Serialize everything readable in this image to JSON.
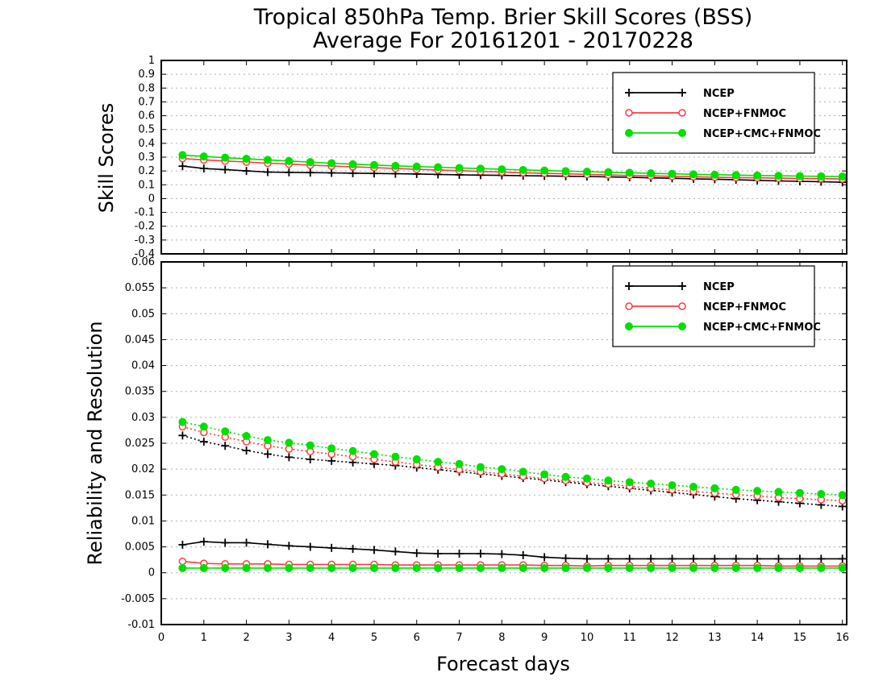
{
  "chart_data": [
    {
      "type": "line",
      "title": "Tropical 850hPa Temp. Brier Skill Scores (BSS)",
      "subtitle": "Average For 20161201 - 20170228",
      "ylabel": "Skill Scores",
      "xlabel": "",
      "ylim": [
        -0.4,
        1.0
      ],
      "yticks": [
        -0.4,
        -0.3,
        -0.2,
        -0.1,
        0,
        0.1,
        0.2,
        0.3,
        0.4,
        0.5,
        0.6,
        0.7,
        0.8,
        0.9,
        1
      ],
      "ytick_labels": [
        "-0.4",
        "-0.3",
        "-0.2",
        "-0.1",
        "0",
        "0.1",
        "0.2",
        "0.3",
        "0.4",
        "0.5",
        "0.6",
        "0.7",
        "0.8",
        "0.9",
        "1"
      ],
      "grid": true,
      "legend_position": "top-right",
      "x": [
        0.5,
        1,
        1.5,
        2,
        2.5,
        3,
        3.5,
        4,
        4.5,
        5,
        5.5,
        6,
        6.5,
        7,
        7.5,
        8,
        8.5,
        9,
        9.5,
        10,
        10.5,
        11,
        11.5,
        12,
        12.5,
        13,
        13.5,
        14,
        14.5,
        15,
        15.5,
        16
      ],
      "series": [
        {
          "name": "NCEP",
          "color": "#000000",
          "marker": "plus",
          "line": "solid",
          "values": [
            0.235,
            0.218,
            0.21,
            0.2,
            0.192,
            0.19,
            0.188,
            0.186,
            0.184,
            0.182,
            0.18,
            0.178,
            0.175,
            0.172,
            0.17,
            0.168,
            0.166,
            0.164,
            0.162,
            0.16,
            0.157,
            0.154,
            0.15,
            0.147,
            0.143,
            0.14,
            0.136,
            0.132,
            0.128,
            0.125,
            0.122,
            0.118
          ]
        },
        {
          "name": "NCEP+FNMOC",
          "color": "#ff3b3b",
          "marker": "circle-open",
          "line": "solid",
          "values": [
            0.29,
            0.28,
            0.272,
            0.265,
            0.256,
            0.25,
            0.242,
            0.236,
            0.23,
            0.224,
            0.218,
            0.212,
            0.207,
            0.202,
            0.197,
            0.192,
            0.187,
            0.183,
            0.179,
            0.175,
            0.171,
            0.167,
            0.164,
            0.161,
            0.158,
            0.155,
            0.152,
            0.15,
            0.148,
            0.146,
            0.144,
            0.142
          ]
        },
        {
          "name": "NCEP+CMC+FNMOC",
          "color": "#00e000",
          "marker": "circle-filled",
          "line": "solid",
          "values": [
            0.315,
            0.305,
            0.296,
            0.288,
            0.28,
            0.272,
            0.264,
            0.256,
            0.249,
            0.243,
            0.237,
            0.232,
            0.227,
            0.222,
            0.217,
            0.212,
            0.207,
            0.203,
            0.199,
            0.195,
            0.191,
            0.187,
            0.183,
            0.179,
            0.176,
            0.173,
            0.17,
            0.167,
            0.165,
            0.163,
            0.161,
            0.16
          ]
        }
      ]
    },
    {
      "type": "line",
      "title": "",
      "ylabel": "Reliability and Resolution",
      "xlabel": "Forecast days",
      "ylim": [
        -0.01,
        0.06
      ],
      "xlim": [
        0,
        16.1
      ],
      "xticks": [
        0,
        1,
        2,
        3,
        4,
        5,
        6,
        7,
        8,
        9,
        10,
        11,
        12,
        13,
        14,
        15,
        16
      ],
      "xtick_labels": [
        "0",
        "1",
        "2",
        "3",
        "4",
        "5",
        "6",
        "7",
        "8",
        "9",
        "10",
        "11",
        "12",
        "13",
        "14",
        "15",
        "16"
      ],
      "yticks": [
        -0.01,
        -0.005,
        0,
        0.005,
        0.01,
        0.015,
        0.02,
        0.025,
        0.03,
        0.035,
        0.04,
        0.045,
        0.05,
        0.055,
        0.06
      ],
      "ytick_labels": [
        "-0.01",
        "-0.005",
        "0",
        "0.005",
        "0.01",
        "0.015",
        "0.02",
        "0.025",
        "0.03",
        "0.035",
        "0.04",
        "0.045",
        "0.05",
        "0.055",
        "0.06"
      ],
      "grid": true,
      "legend_position": "top-right",
      "x": [
        0.5,
        1,
        1.5,
        2,
        2.5,
        3,
        3.5,
        4,
        4.5,
        5,
        5.5,
        6,
        6.5,
        7,
        7.5,
        8,
        8.5,
        9,
        9.5,
        10,
        10.5,
        11,
        11.5,
        12,
        12.5,
        13,
        13.5,
        14,
        14.5,
        15,
        15.5,
        16
      ],
      "series": [
        {
          "name": "NCEP",
          "color": "#000000",
          "marker": "plus",
          "line": "dotted",
          "values": [
            0.0265,
            0.0253,
            0.0245,
            0.0236,
            0.0229,
            0.0223,
            0.0219,
            0.0216,
            0.0213,
            0.021,
            0.0207,
            0.0203,
            0.0199,
            0.0195,
            0.0191,
            0.0187,
            0.0183,
            0.0179,
            0.0175,
            0.0171,
            0.0167,
            0.0163,
            0.0159,
            0.0155,
            0.0151,
            0.0147,
            0.0143,
            0.014,
            0.0137,
            0.0134,
            0.0131,
            0.0128
          ]
        },
        {
          "name": "NCEP+FNMOC",
          "color": "#ff3b3b",
          "marker": "circle-open",
          "line": "dotted",
          "values": [
            0.0282,
            0.0271,
            0.0262,
            0.0253,
            0.0245,
            0.0239,
            0.0234,
            0.0229,
            0.0224,
            0.0219,
            0.0214,
            0.0209,
            0.0204,
            0.0199,
            0.0195,
            0.0191,
            0.0186,
            0.0182,
            0.0178,
            0.0174,
            0.0171,
            0.0167,
            0.0163,
            0.016,
            0.0157,
            0.0154,
            0.0151,
            0.0148,
            0.0145,
            0.0143,
            0.0141,
            0.0139
          ]
        },
        {
          "name": "NCEP+CMC+FNMOC",
          "color": "#00e000",
          "marker": "circle-filled",
          "line": "dotted",
          "values": [
            0.0291,
            0.0282,
            0.0273,
            0.0264,
            0.0256,
            0.0251,
            0.0246,
            0.024,
            0.0235,
            0.0229,
            0.0224,
            0.0219,
            0.0214,
            0.021,
            0.0204,
            0.02,
            0.0195,
            0.019,
            0.0185,
            0.0182,
            0.0178,
            0.0175,
            0.0172,
            0.0169,
            0.0166,
            0.0163,
            0.016,
            0.0158,
            0.0156,
            0.0154,
            0.0152,
            0.015
          ]
        },
        {
          "name": "",
          "legend_ref": "NCEP",
          "color": "#000000",
          "marker": "plus",
          "line": "solid",
          "values": [
            0.0054,
            0.006,
            0.0058,
            0.0058,
            0.0055,
            0.0052,
            0.005,
            0.0048,
            0.0046,
            0.0044,
            0.0041,
            0.0038,
            0.0037,
            0.0037,
            0.0037,
            0.0036,
            0.0034,
            0.003,
            0.0028,
            0.0027,
            0.0027,
            0.0027,
            0.0027,
            0.0027,
            0.0027,
            0.0027,
            0.0027,
            0.0027,
            0.0027,
            0.0027,
            0.0027,
            0.0027
          ]
        },
        {
          "name": "",
          "legend_ref": "NCEP+FNMOC",
          "color": "#ff3b3b",
          "marker": "circle-open",
          "line": "solid",
          "values": [
            0.0022,
            0.0018,
            0.0017,
            0.0017,
            0.0017,
            0.0016,
            0.0016,
            0.0016,
            0.0016,
            0.0016,
            0.0015,
            0.0015,
            0.0015,
            0.0015,
            0.0015,
            0.0015,
            0.0015,
            0.0014,
            0.0014,
            0.0013,
            0.0014,
            0.0014,
            0.0014,
            0.0014,
            0.0014,
            0.0014,
            0.0014,
            0.0014,
            0.0013,
            0.0013,
            0.0013,
            0.0013
          ]
        },
        {
          "name": "",
          "legend_ref": "NCEP+CMC+FNMOC",
          "color": "#00e000",
          "marker": "circle-filled",
          "line": "solid",
          "values": [
            0.0009,
            0.0009,
            0.0009,
            0.0009,
            0.0009,
            0.0009,
            0.0009,
            0.0009,
            0.0009,
            0.0009,
            0.0009,
            0.0009,
            0.0009,
            0.0009,
            0.0009,
            0.0009,
            0.0009,
            0.0009,
            0.0009,
            0.0009,
            0.0009,
            0.0009,
            0.0009,
            0.0009,
            0.0009,
            0.0009,
            0.0009,
            0.0009,
            0.0009,
            0.0009,
            0.0009,
            0.0009
          ]
        }
      ]
    }
  ]
}
